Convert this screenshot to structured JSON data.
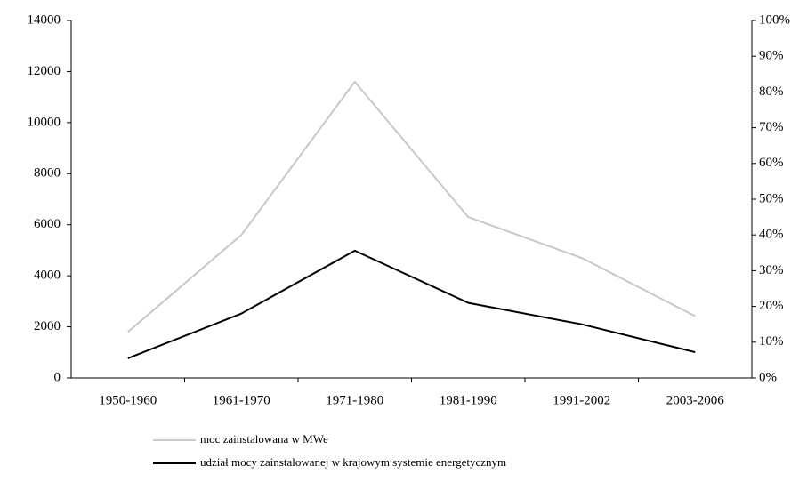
{
  "chart_data": {
    "type": "line",
    "categories": [
      "1950-1960",
      "1961-1970",
      "1971-1980",
      "1981-1990",
      "1991-2002",
      "2003-2006"
    ],
    "series": [
      {
        "name": "moc zainstalowana w MWe",
        "color": "#c8c8c8",
        "values": [
          1800,
          5600,
          11600,
          6300,
          4700,
          2420
        ]
      },
      {
        "name": "udział mocy zainstalowanej w krajowym systemie energetycznym",
        "color": "#000000",
        "axis": "y2",
        "values": [
          5.5,
          18,
          35.6,
          21,
          15,
          7.2
        ]
      }
    ],
    "ylim": [
      0,
      14000
    ],
    "yticks": [
      0,
      2000,
      4000,
      6000,
      8000,
      10000,
      12000,
      14000
    ],
    "y2lim": [
      0,
      100
    ],
    "y2ticks": [
      {
        "value": 0,
        "label": "0%"
      },
      {
        "value": 10,
        "label": "10%"
      },
      {
        "value": 20,
        "label": "20%"
      },
      {
        "value": 30,
        "label": "30%"
      },
      {
        "value": 40,
        "label": "40%"
      },
      {
        "value": 50,
        "label": "50%"
      },
      {
        "value": 60,
        "label": "60%"
      },
      {
        "value": 70,
        "label": "70%"
      },
      {
        "value": 80,
        "label": "80%"
      },
      {
        "value": 90,
        "label": "90%"
      },
      {
        "value": 100,
        "label": "100%"
      }
    ]
  }
}
